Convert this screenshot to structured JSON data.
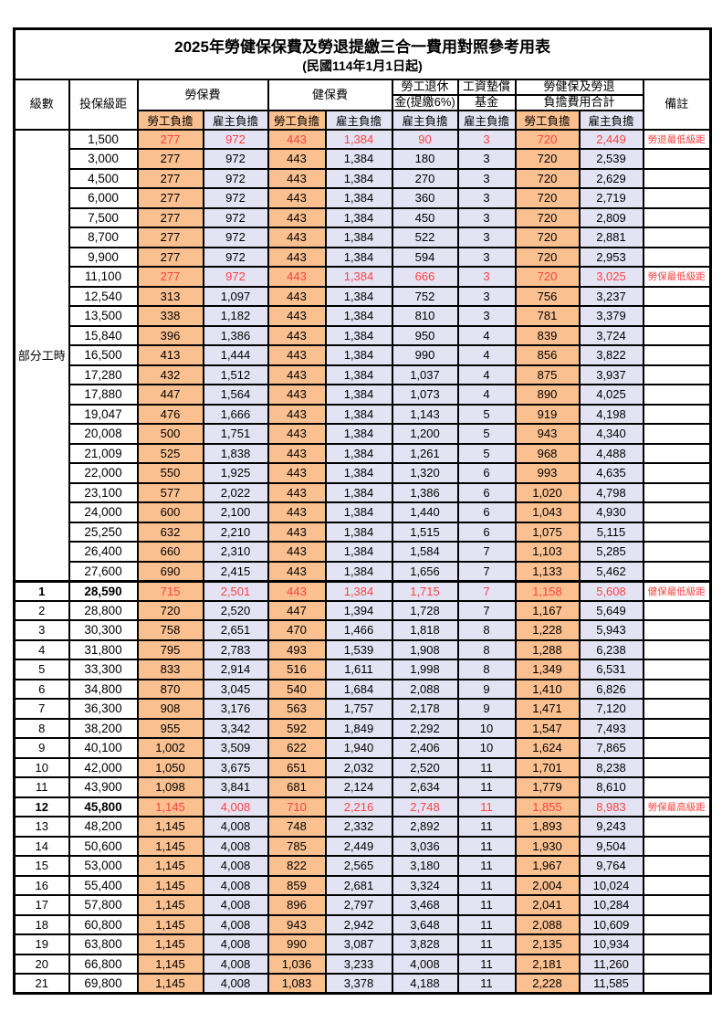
{
  "title": "2025年勞健保保費及勞退提繳三合一費用對照參考用表",
  "subtitle": "(民國114年1月1日起)",
  "header": {
    "level": "級數",
    "bracket": "投保級距",
    "labor_group": "勞保費",
    "health_group": "健保費",
    "pension_line1": "勞工退休",
    "pension_line2": "金(提繳6%)",
    "fund_line1": "工資墊償",
    "fund_line2": "基金",
    "total_line1": "勞健保及勞退",
    "total_line2": "負擔費用合計",
    "remark": "備註",
    "employee": "勞工負擔",
    "employer": "雇主負擔"
  },
  "part_time_label": "部分工時",
  "colors": {
    "employee_bg": "#FAC090",
    "employer_bg": "#E4E3F3",
    "highlight_text": "#FF4242",
    "grid": "#000000"
  },
  "rows": [
    {
      "level": "",
      "bracket": "1,500",
      "li_emp": "277",
      "li_er": "972",
      "hi_emp": "443",
      "hi_er": "1,384",
      "pension": "90",
      "fund": "3",
      "sum_emp": "720",
      "sum_er": "2,449",
      "remark": "勞退最低級距",
      "hl": true,
      "bold": false
    },
    {
      "level": "",
      "bracket": "3,000",
      "li_emp": "277",
      "li_er": "972",
      "hi_emp": "443",
      "hi_er": "1,384",
      "pension": "180",
      "fund": "3",
      "sum_emp": "720",
      "sum_er": "2,539",
      "remark": "",
      "hl": false,
      "bold": false
    },
    {
      "level": "",
      "bracket": "4,500",
      "li_emp": "277",
      "li_er": "972",
      "hi_emp": "443",
      "hi_er": "1,384",
      "pension": "270",
      "fund": "3",
      "sum_emp": "720",
      "sum_er": "2,629",
      "remark": "",
      "hl": false,
      "bold": false
    },
    {
      "level": "",
      "bracket": "6,000",
      "li_emp": "277",
      "li_er": "972",
      "hi_emp": "443",
      "hi_er": "1,384",
      "pension": "360",
      "fund": "3",
      "sum_emp": "720",
      "sum_er": "2,719",
      "remark": "",
      "hl": false,
      "bold": false
    },
    {
      "level": "",
      "bracket": "7,500",
      "li_emp": "277",
      "li_er": "972",
      "hi_emp": "443",
      "hi_er": "1,384",
      "pension": "450",
      "fund": "3",
      "sum_emp": "720",
      "sum_er": "2,809",
      "remark": "",
      "hl": false,
      "bold": false
    },
    {
      "level": "",
      "bracket": "8,700",
      "li_emp": "277",
      "li_er": "972",
      "hi_emp": "443",
      "hi_er": "1,384",
      "pension": "522",
      "fund": "3",
      "sum_emp": "720",
      "sum_er": "2,881",
      "remark": "",
      "hl": false,
      "bold": false
    },
    {
      "level": "",
      "bracket": "9,900",
      "li_emp": "277",
      "li_er": "972",
      "hi_emp": "443",
      "hi_er": "1,384",
      "pension": "594",
      "fund": "3",
      "sum_emp": "720",
      "sum_er": "2,953",
      "remark": "",
      "hl": false,
      "bold": false
    },
    {
      "level": "",
      "bracket": "11,100",
      "li_emp": "277",
      "li_er": "972",
      "hi_emp": "443",
      "hi_er": "1,384",
      "pension": "666",
      "fund": "3",
      "sum_emp": "720",
      "sum_er": "3,025",
      "remark": "勞保最低級距",
      "hl": true,
      "bold": false
    },
    {
      "level": "",
      "bracket": "12,540",
      "li_emp": "313",
      "li_er": "1,097",
      "hi_emp": "443",
      "hi_er": "1,384",
      "pension": "752",
      "fund": "3",
      "sum_emp": "756",
      "sum_er": "3,237",
      "remark": "",
      "hl": false,
      "bold": false
    },
    {
      "level": "",
      "bracket": "13,500",
      "li_emp": "338",
      "li_er": "1,182",
      "hi_emp": "443",
      "hi_er": "1,384",
      "pension": "810",
      "fund": "3",
      "sum_emp": "781",
      "sum_er": "3,379",
      "remark": "",
      "hl": false,
      "bold": false
    },
    {
      "level": "",
      "bracket": "15,840",
      "li_emp": "396",
      "li_er": "1,386",
      "hi_emp": "443",
      "hi_er": "1,384",
      "pension": "950",
      "fund": "4",
      "sum_emp": "839",
      "sum_er": "3,724",
      "remark": "",
      "hl": false,
      "bold": false
    },
    {
      "level": "",
      "bracket": "16,500",
      "li_emp": "413",
      "li_er": "1,444",
      "hi_emp": "443",
      "hi_er": "1,384",
      "pension": "990",
      "fund": "4",
      "sum_emp": "856",
      "sum_er": "3,822",
      "remark": "",
      "hl": false,
      "bold": false
    },
    {
      "level": "",
      "bracket": "17,280",
      "li_emp": "432",
      "li_er": "1,512",
      "hi_emp": "443",
      "hi_er": "1,384",
      "pension": "1,037",
      "fund": "4",
      "sum_emp": "875",
      "sum_er": "3,937",
      "remark": "",
      "hl": false,
      "bold": false
    },
    {
      "level": "",
      "bracket": "17,880",
      "li_emp": "447",
      "li_er": "1,564",
      "hi_emp": "443",
      "hi_er": "1,384",
      "pension": "1,073",
      "fund": "4",
      "sum_emp": "890",
      "sum_er": "4,025",
      "remark": "",
      "hl": false,
      "bold": false
    },
    {
      "level": "",
      "bracket": "19,047",
      "li_emp": "476",
      "li_er": "1,666",
      "hi_emp": "443",
      "hi_er": "1,384",
      "pension": "1,143",
      "fund": "5",
      "sum_emp": "919",
      "sum_er": "4,198",
      "remark": "",
      "hl": false,
      "bold": false
    },
    {
      "level": "",
      "bracket": "20,008",
      "li_emp": "500",
      "li_er": "1,751",
      "hi_emp": "443",
      "hi_er": "1,384",
      "pension": "1,200",
      "fund": "5",
      "sum_emp": "943",
      "sum_er": "4,340",
      "remark": "",
      "hl": false,
      "bold": false
    },
    {
      "level": "",
      "bracket": "21,009",
      "li_emp": "525",
      "li_er": "1,838",
      "hi_emp": "443",
      "hi_er": "1,384",
      "pension": "1,261",
      "fund": "5",
      "sum_emp": "968",
      "sum_er": "4,488",
      "remark": "",
      "hl": false,
      "bold": false
    },
    {
      "level": "",
      "bracket": "22,000",
      "li_emp": "550",
      "li_er": "1,925",
      "hi_emp": "443",
      "hi_er": "1,384",
      "pension": "1,320",
      "fund": "6",
      "sum_emp": "993",
      "sum_er": "4,635",
      "remark": "",
      "hl": false,
      "bold": false
    },
    {
      "level": "",
      "bracket": "23,100",
      "li_emp": "577",
      "li_er": "2,022",
      "hi_emp": "443",
      "hi_er": "1,384",
      "pension": "1,386",
      "fund": "6",
      "sum_emp": "1,020",
      "sum_er": "4,798",
      "remark": "",
      "hl": false,
      "bold": false
    },
    {
      "level": "",
      "bracket": "24,000",
      "li_emp": "600",
      "li_er": "2,100",
      "hi_emp": "443",
      "hi_er": "1,384",
      "pension": "1,440",
      "fund": "6",
      "sum_emp": "1,043",
      "sum_er": "4,930",
      "remark": "",
      "hl": false,
      "bold": false
    },
    {
      "level": "",
      "bracket": "25,250",
      "li_emp": "632",
      "li_er": "2,210",
      "hi_emp": "443",
      "hi_er": "1,384",
      "pension": "1,515",
      "fund": "6",
      "sum_emp": "1,075",
      "sum_er": "5,115",
      "remark": "",
      "hl": false,
      "bold": false
    },
    {
      "level": "",
      "bracket": "26,400",
      "li_emp": "660",
      "li_er": "2,310",
      "hi_emp": "443",
      "hi_er": "1,384",
      "pension": "1,584",
      "fund": "7",
      "sum_emp": "1,103",
      "sum_er": "5,285",
      "remark": "",
      "hl": false,
      "bold": false
    },
    {
      "level": "",
      "bracket": "27,600",
      "li_emp": "690",
      "li_er": "2,415",
      "hi_emp": "443",
      "hi_er": "1,384",
      "pension": "1,656",
      "fund": "7",
      "sum_emp": "1,133",
      "sum_er": "5,462",
      "remark": "",
      "hl": false,
      "bold": false
    },
    {
      "level": "1",
      "bracket": "28,590",
      "li_emp": "715",
      "li_er": "2,501",
      "hi_emp": "443",
      "hi_er": "1,384",
      "pension": "1,715",
      "fund": "7",
      "sum_emp": "1,158",
      "sum_er": "5,608",
      "remark": "健保最低級距",
      "hl": true,
      "bold": true
    },
    {
      "level": "2",
      "bracket": "28,800",
      "li_emp": "720",
      "li_er": "2,520",
      "hi_emp": "447",
      "hi_er": "1,394",
      "pension": "1,728",
      "fund": "7",
      "sum_emp": "1,167",
      "sum_er": "5,649",
      "remark": "",
      "hl": false,
      "bold": false
    },
    {
      "level": "3",
      "bracket": "30,300",
      "li_emp": "758",
      "li_er": "2,651",
      "hi_emp": "470",
      "hi_er": "1,466",
      "pension": "1,818",
      "fund": "8",
      "sum_emp": "1,228",
      "sum_er": "5,943",
      "remark": "",
      "hl": false,
      "bold": false
    },
    {
      "level": "4",
      "bracket": "31,800",
      "li_emp": "795",
      "li_er": "2,783",
      "hi_emp": "493",
      "hi_er": "1,539",
      "pension": "1,908",
      "fund": "8",
      "sum_emp": "1,288",
      "sum_er": "6,238",
      "remark": "",
      "hl": false,
      "bold": false
    },
    {
      "level": "5",
      "bracket": "33,300",
      "li_emp": "833",
      "li_er": "2,914",
      "hi_emp": "516",
      "hi_er": "1,611",
      "pension": "1,998",
      "fund": "8",
      "sum_emp": "1,349",
      "sum_er": "6,531",
      "remark": "",
      "hl": false,
      "bold": false
    },
    {
      "level": "6",
      "bracket": "34,800",
      "li_emp": "870",
      "li_er": "3,045",
      "hi_emp": "540",
      "hi_er": "1,684",
      "pension": "2,088",
      "fund": "9",
      "sum_emp": "1,410",
      "sum_er": "6,826",
      "remark": "",
      "hl": false,
      "bold": false
    },
    {
      "level": "7",
      "bracket": "36,300",
      "li_emp": "908",
      "li_er": "3,176",
      "hi_emp": "563",
      "hi_er": "1,757",
      "pension": "2,178",
      "fund": "9",
      "sum_emp": "1,471",
      "sum_er": "7,120",
      "remark": "",
      "hl": false,
      "bold": false
    },
    {
      "level": "8",
      "bracket": "38,200",
      "li_emp": "955",
      "li_er": "3,342",
      "hi_emp": "592",
      "hi_er": "1,849",
      "pension": "2,292",
      "fund": "10",
      "sum_emp": "1,547",
      "sum_er": "7,493",
      "remark": "",
      "hl": false,
      "bold": false
    },
    {
      "level": "9",
      "bracket": "40,100",
      "li_emp": "1,002",
      "li_er": "3,509",
      "hi_emp": "622",
      "hi_er": "1,940",
      "pension": "2,406",
      "fund": "10",
      "sum_emp": "1,624",
      "sum_er": "7,865",
      "remark": "",
      "hl": false,
      "bold": false
    },
    {
      "level": "10",
      "bracket": "42,000",
      "li_emp": "1,050",
      "li_er": "3,675",
      "hi_emp": "651",
      "hi_er": "2,032",
      "pension": "2,520",
      "fund": "11",
      "sum_emp": "1,701",
      "sum_er": "8,238",
      "remark": "",
      "hl": false,
      "bold": false
    },
    {
      "level": "11",
      "bracket": "43,900",
      "li_emp": "1,098",
      "li_er": "3,841",
      "hi_emp": "681",
      "hi_er": "2,124",
      "pension": "2,634",
      "fund": "11",
      "sum_emp": "1,779",
      "sum_er": "8,610",
      "remark": "",
      "hl": false,
      "bold": false
    },
    {
      "level": "12",
      "bracket": "45,800",
      "li_emp": "1,145",
      "li_er": "4,008",
      "hi_emp": "710",
      "hi_er": "2,216",
      "pension": "2,748",
      "fund": "11",
      "sum_emp": "1,855",
      "sum_er": "8,983",
      "remark": "勞保最高級距",
      "hl": true,
      "bold": true
    },
    {
      "level": "13",
      "bracket": "48,200",
      "li_emp": "1,145",
      "li_er": "4,008",
      "hi_emp": "748",
      "hi_er": "2,332",
      "pension": "2,892",
      "fund": "11",
      "sum_emp": "1,893",
      "sum_er": "9,243",
      "remark": "",
      "hl": false,
      "bold": false
    },
    {
      "level": "14",
      "bracket": "50,600",
      "li_emp": "1,145",
      "li_er": "4,008",
      "hi_emp": "785",
      "hi_er": "2,449",
      "pension": "3,036",
      "fund": "11",
      "sum_emp": "1,930",
      "sum_er": "9,504",
      "remark": "",
      "hl": false,
      "bold": false
    },
    {
      "level": "15",
      "bracket": "53,000",
      "li_emp": "1,145",
      "li_er": "4,008",
      "hi_emp": "822",
      "hi_er": "2,565",
      "pension": "3,180",
      "fund": "11",
      "sum_emp": "1,967",
      "sum_er": "9,764",
      "remark": "",
      "hl": false,
      "bold": false
    },
    {
      "level": "16",
      "bracket": "55,400",
      "li_emp": "1,145",
      "li_er": "4,008",
      "hi_emp": "859",
      "hi_er": "2,681",
      "pension": "3,324",
      "fund": "11",
      "sum_emp": "2,004",
      "sum_er": "10,024",
      "remark": "",
      "hl": false,
      "bold": false
    },
    {
      "level": "17",
      "bracket": "57,800",
      "li_emp": "1,145",
      "li_er": "4,008",
      "hi_emp": "896",
      "hi_er": "2,797",
      "pension": "3,468",
      "fund": "11",
      "sum_emp": "2,041",
      "sum_er": "10,284",
      "remark": "",
      "hl": false,
      "bold": false
    },
    {
      "level": "18",
      "bracket": "60,800",
      "li_emp": "1,145",
      "li_er": "4,008",
      "hi_emp": "943",
      "hi_er": "2,942",
      "pension": "3,648",
      "fund": "11",
      "sum_emp": "2,088",
      "sum_er": "10,609",
      "remark": "",
      "hl": false,
      "bold": false
    },
    {
      "level": "19",
      "bracket": "63,800",
      "li_emp": "1,145",
      "li_er": "4,008",
      "hi_emp": "990",
      "hi_er": "3,087",
      "pension": "3,828",
      "fund": "11",
      "sum_emp": "2,135",
      "sum_er": "10,934",
      "remark": "",
      "hl": false,
      "bold": false
    },
    {
      "level": "20",
      "bracket": "66,800",
      "li_emp": "1,145",
      "li_er": "4,008",
      "hi_emp": "1,036",
      "hi_er": "3,233",
      "pension": "4,008",
      "fund": "11",
      "sum_emp": "2,181",
      "sum_er": "11,260",
      "remark": "",
      "hl": false,
      "bold": false
    },
    {
      "level": "21",
      "bracket": "69,800",
      "li_emp": "1,145",
      "li_er": "4,008",
      "hi_emp": "1,083",
      "hi_er": "3,378",
      "pension": "4,188",
      "fund": "11",
      "sum_emp": "2,228",
      "sum_er": "11,585",
      "remark": "",
      "hl": false,
      "bold": false
    }
  ]
}
